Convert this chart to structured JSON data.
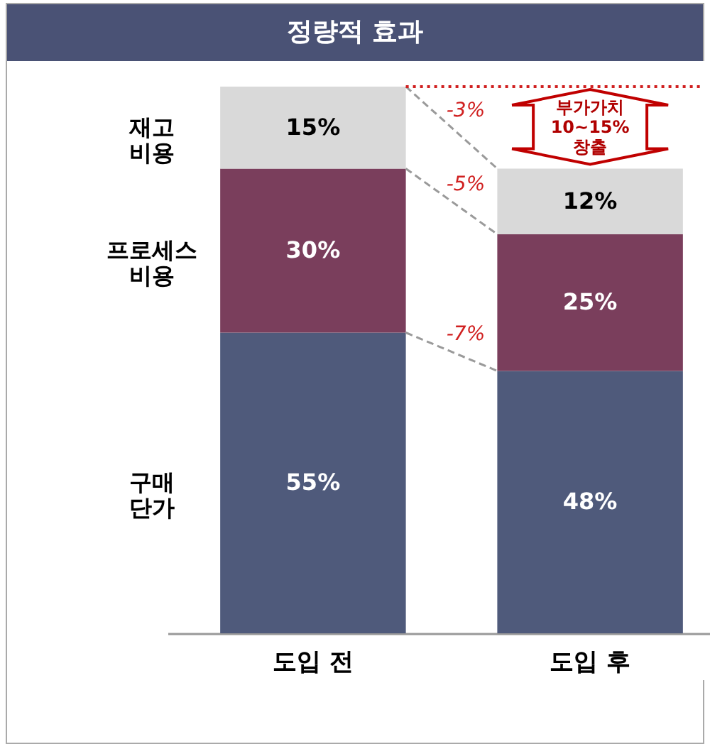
{
  "chart_data": {
    "type": "bar",
    "title": "정량적 효과",
    "categories": [
      "도입 전",
      "도입 후"
    ],
    "stacked": true,
    "legend": false,
    "series": [
      {
        "name": "구매 단가",
        "color": "#4f5a7b",
        "values": [
          55,
          48
        ],
        "value_labels": [
          "55%",
          "48%"
        ]
      },
      {
        "name": "프로세스 비용",
        "color": "#7a3e5c",
        "values": [
          30,
          25
        ],
        "value_labels": [
          "30%",
          "25%"
        ]
      },
      {
        "name": "재고 비용",
        "color": "#d9d9d9",
        "values": [
          15,
          12
        ],
        "value_labels": [
          "15%",
          "12%"
        ]
      }
    ],
    "annotations": [
      "-3%",
      "-5%",
      "-7%",
      "부가가치 10~15% 창출"
    ]
  }
}
